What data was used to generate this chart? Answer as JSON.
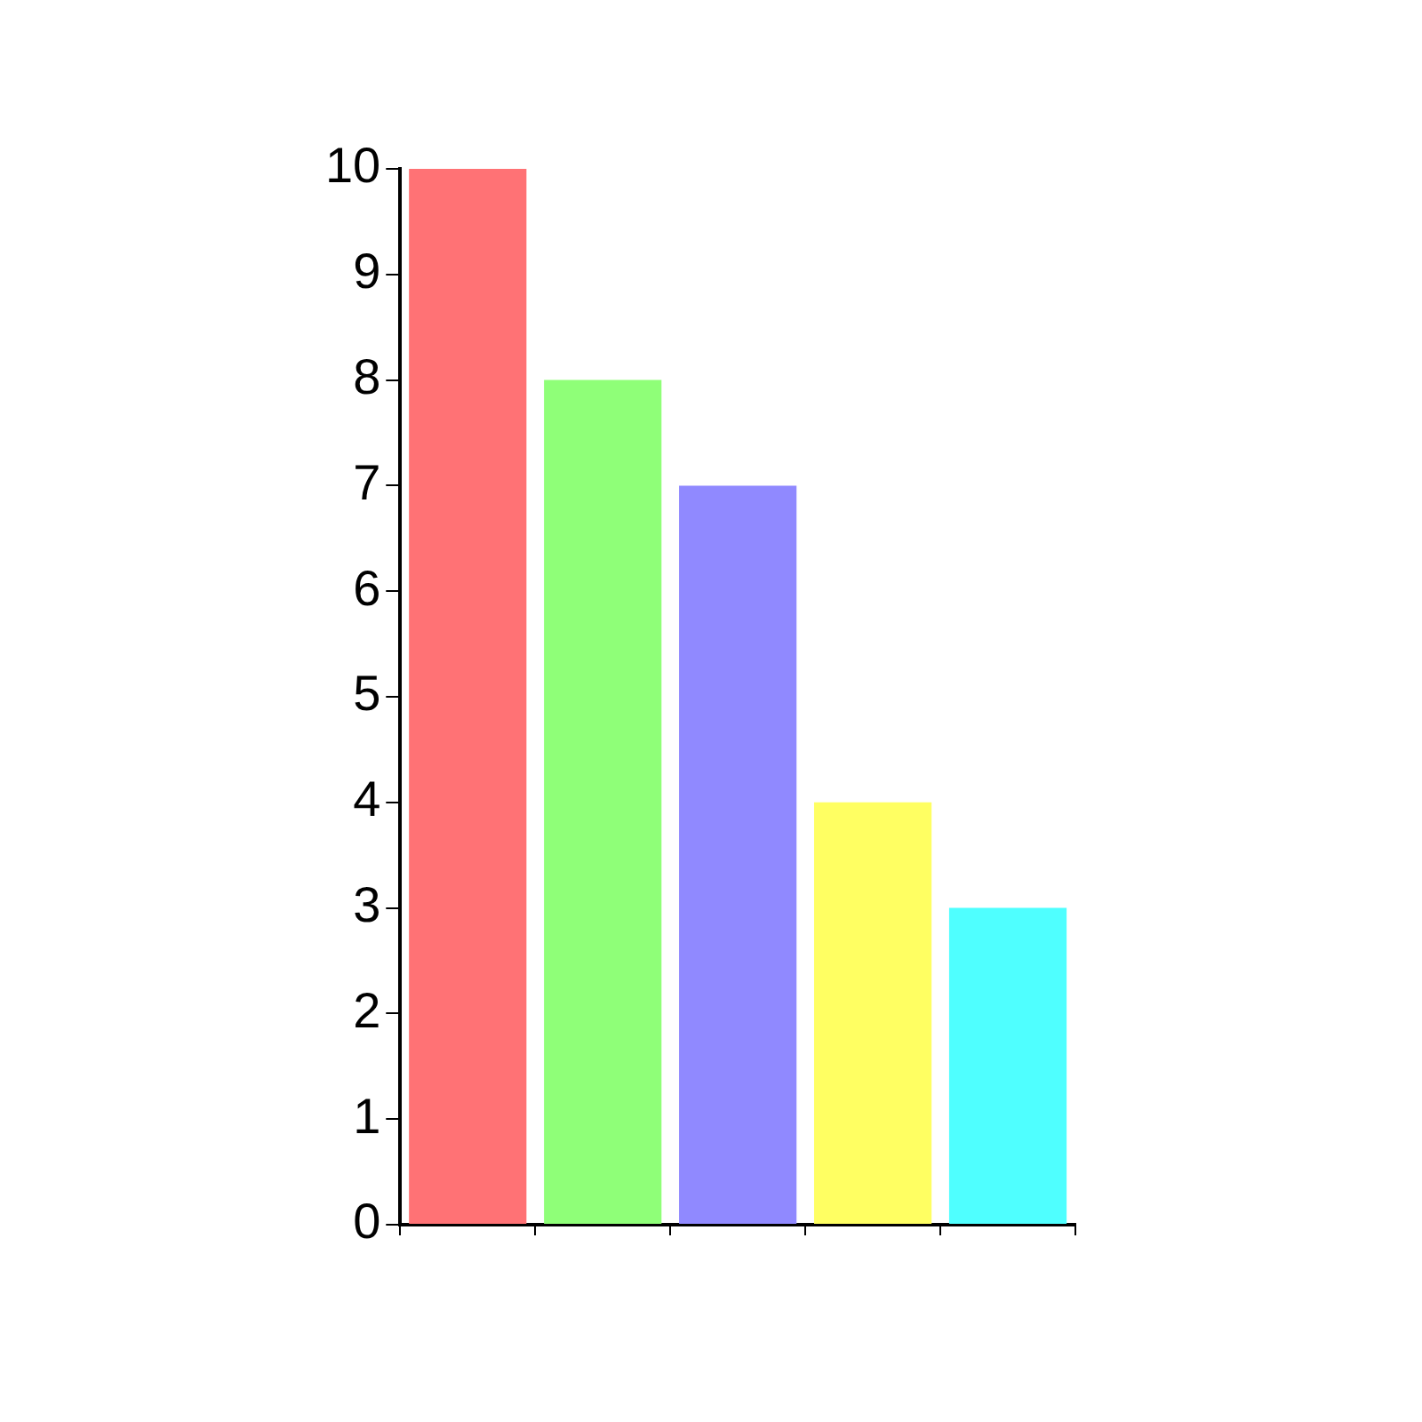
{
  "chart_data": {
    "type": "bar",
    "categories": [
      null,
      null,
      null,
      null,
      null
    ],
    "values": [
      10,
      8,
      7,
      4,
      3
    ],
    "colors": [
      "#ff7275",
      "#8fff78",
      "#9089ff",
      "#ffff62",
      "#4fffff"
    ],
    "ylim": [
      0,
      10
    ],
    "yticks": [
      0,
      1,
      2,
      3,
      4,
      5,
      6,
      7,
      8,
      9,
      10
    ],
    "grid": false,
    "legend": false
  }
}
